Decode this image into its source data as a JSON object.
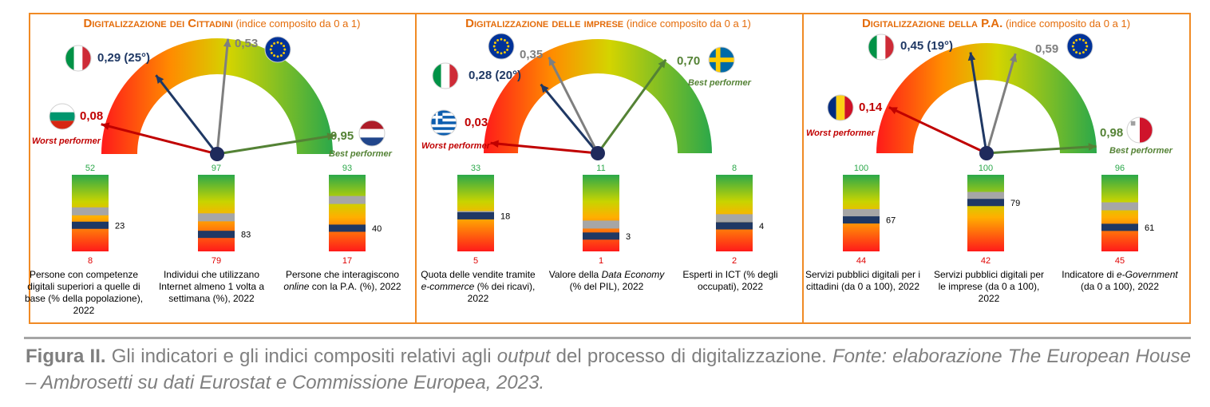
{
  "colors": {
    "frame": "#F08A24",
    "title": "#E46C0A",
    "worst": "#C00000",
    "best": "#548235",
    "italy_needle": "#1F3864",
    "eu_needle": "#7F7F7F",
    "best_label": "#70AD47",
    "worst_label": "#C00000",
    "bar_top": "#2BA84A",
    "bar_bottom": "#FF1A1A",
    "italy_mark": "#1F3864",
    "eu_mark": "#A6A6A6"
  },
  "chart_data": [
    {
      "type": "gauge",
      "title_main": "Digitalizzazione dei Cittadini",
      "title_sub": "(indice composito da 0 a 1)",
      "range": [
        0,
        1
      ],
      "needles": [
        {
          "name": "worst",
          "value": 0.08,
          "label": "0,08",
          "flag": "bulgaria-flag",
          "tag": "Worst performer"
        },
        {
          "name": "italy",
          "value": 0.29,
          "label": "0,29 (25°)",
          "flag": "italy-flag"
        },
        {
          "name": "eu",
          "value": 0.53,
          "label": "0,53",
          "flag": "eu-flag"
        },
        {
          "name": "best",
          "value": 0.95,
          "label": "0,95",
          "flag": "netherlands-flag",
          "tag": "Best performer"
        }
      ],
      "bars": [
        {
          "max": 52,
          "min": 8,
          "italy": 23,
          "eu": 31,
          "max_label": "52",
          "min_label": "8",
          "italy_label": "23",
          "desc_html": "Persone con competenze digitali superiori a quelle di base (% della popolazione), 2022"
        },
        {
          "max": 97,
          "min": 79,
          "italy": 83,
          "eu": 87,
          "max_label": "97",
          "min_label": "79",
          "italy_label": "83",
          "desc_html": "Individui che utilizzano Internet almeno 1 volta a settimana (%), 2022"
        },
        {
          "max": 93,
          "min": 17,
          "italy": 40,
          "eu": 68,
          "max_label": "93",
          "min_label": "17",
          "italy_label": "40",
          "desc_html": "Persone che interagiscono <i>online</i> con la P.A. (%), 2022"
        }
      ]
    },
    {
      "type": "gauge",
      "title_main": "Digitalizzazione delle imprese",
      "title_sub": "(indice composito da 0 a 1)",
      "range": [
        0,
        1
      ],
      "needles": [
        {
          "name": "worst",
          "value": 0.03,
          "label": "0,03",
          "flag": "greece-flag",
          "tag": "Worst performer"
        },
        {
          "name": "italy",
          "value": 0.28,
          "label": "0,28 (20°)",
          "flag": "italy-flag"
        },
        {
          "name": "eu",
          "value": 0.35,
          "label": "0,35",
          "flag": "eu-flag"
        },
        {
          "name": "best",
          "value": 0.7,
          "label": "0,70",
          "flag": "sweden-flag",
          "tag": "Best performer"
        }
      ],
      "bars": [
        {
          "max": 33,
          "min": 5,
          "italy": 18,
          "eu": 18.3,
          "max_label": "33",
          "min_label": "5",
          "italy_label": "18",
          "desc_html": "Quota delle vendite tramite <i>e-commerce</i> (% dei ricavi), 2022"
        },
        {
          "max": 11,
          "min": 1,
          "italy": 3,
          "eu": 4.5,
          "max_label": "11",
          "min_label": "1",
          "italy_label": "3",
          "desc_html": "Valore della <i>Data Economy</i> (% del PIL), 2022"
        },
        {
          "max": 8,
          "min": 2,
          "italy": 4,
          "eu": 4.6,
          "max_label": "8",
          "min_label": "2",
          "italy_label": "4",
          "desc_html": "Esperti in ICT (% degli occupati), 2022"
        }
      ]
    },
    {
      "type": "gauge",
      "title_main": "Digitalizzazione della P.A.",
      "title_sub": "(indice composito da 0 a 1)",
      "range": [
        0,
        1
      ],
      "needles": [
        {
          "name": "worst",
          "value": 0.14,
          "label": "0,14",
          "flag": "romania-flag",
          "tag": "Worst performer"
        },
        {
          "name": "italy",
          "value": 0.45,
          "label": "0,45 (19°)",
          "flag": "italy-flag"
        },
        {
          "name": "eu",
          "value": 0.59,
          "label": "0,59",
          "flag": "eu-flag"
        },
        {
          "name": "best",
          "value": 0.98,
          "label": "0,98",
          "flag": "malta-flag",
          "tag": "Best performer"
        }
      ],
      "bars": [
        {
          "max": 100,
          "min": 44,
          "italy": 67,
          "eu": 72,
          "max_label": "100",
          "min_label": "44",
          "italy_label": "67",
          "desc_html": "Servizi pubblici digitali per i cittadini (da 0 a 100), 2022"
        },
        {
          "max": 100,
          "min": 42,
          "italy": 79,
          "eu": 84,
          "max_label": "100",
          "min_label": "42",
          "italy_label": "79",
          "desc_html": "Servizi pubblici digitali per le imprese (da 0 a 100), 2022"
        },
        {
          "max": 96,
          "min": 45,
          "italy": 61,
          "eu": 75,
          "max_label": "96",
          "min_label": "45",
          "italy_label": "61",
          "desc_html": "Indicatore di <i>e-Government</i> (da 0 a 100), 2022"
        }
      ]
    }
  ],
  "caption": {
    "label": "Figura II.",
    "text": " Gli indicatori e gli indici compositi relativi agli ",
    "italic_word": "output",
    "text2": " del processo di digitalizzazione. ",
    "source": "Fonte: elaborazione The European House – Ambrosetti su dati Eurostat e Commissione Europea, 2023."
  }
}
